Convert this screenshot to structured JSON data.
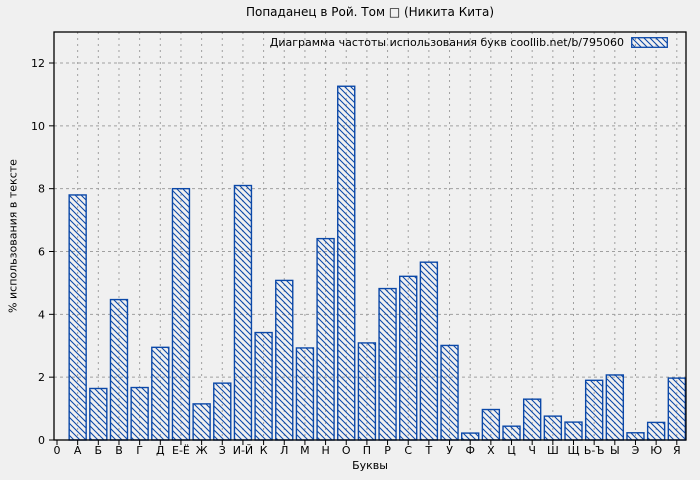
{
  "title": "Попаданец в Рой. Том □ (Никита Кита)",
  "chart_data": {
    "type": "bar",
    "title": "Попаданец в Рой. Том □ (Никита Кита)",
    "legend_label": "Диаграмма частоты использования букв coollib.net/b/795060",
    "legend_position": "top-right-inside",
    "xlabel": "Буквы",
    "ylabel": "% использования в тексте",
    "x_origin_label": "0",
    "categories": [
      "А",
      "Б",
      "В",
      "Г",
      "Д",
      "Е-Ё",
      "Ж",
      "З",
      "И-Й",
      "К",
      "Л",
      "М",
      "Н",
      "О",
      "П",
      "Р",
      "С",
      "Т",
      "У",
      "Ф",
      "Х",
      "Ц",
      "Ч",
      "Ш",
      "Щ",
      "Ь-Ъ",
      "Ы",
      "Э",
      "Ю",
      "Я"
    ],
    "values": [
      7.8,
      1.64,
      4.47,
      1.67,
      2.95,
      8.0,
      1.15,
      1.81,
      8.1,
      3.42,
      5.08,
      2.93,
      6.41,
      11.26,
      3.09,
      4.82,
      5.21,
      5.66,
      3.01,
      0.22,
      0.97,
      0.44,
      1.3,
      0.76,
      0.57,
      1.9,
      2.07,
      0.23,
      0.56,
      1.97
    ],
    "yticks": [
      0,
      2,
      4,
      6,
      8,
      10,
      12
    ],
    "ylim": [
      0,
      13
    ],
    "grid": true,
    "hatch": "diagonal-down",
    "colors": {
      "bar": "#0b48a8",
      "grid": "#a0a0a0",
      "axis": "#000000",
      "background": "#f0f0f0",
      "text": "#000000"
    }
  }
}
